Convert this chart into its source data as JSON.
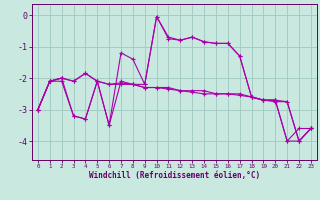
{
  "xlabel": "Windchill (Refroidissement éolien,°C)",
  "bg_color": "#c8e8e0",
  "grid_color": "#a0c8c0",
  "line_color": "#aa00aa",
  "ylim": [
    -4.6,
    0.35
  ],
  "xlim": [
    -0.5,
    23.5
  ],
  "yticks": [
    0,
    -1,
    -2,
    -3,
    -4
  ],
  "xticks": [
    0,
    1,
    2,
    3,
    4,
    5,
    6,
    7,
    8,
    9,
    10,
    11,
    12,
    13,
    14,
    15,
    16,
    17,
    18,
    19,
    20,
    21,
    22,
    23
  ],
  "lines": [
    {
      "x": [
        0,
        1,
        2,
        3,
        4,
        5,
        6,
        7,
        8,
        9,
        10,
        11,
        12,
        13,
        14,
        15,
        16,
        17,
        18,
        19,
        20,
        21,
        22,
        23
      ],
      "y": [
        -3.0,
        -2.1,
        -2.0,
        -3.2,
        -3.3,
        -2.1,
        -3.5,
        -1.2,
        -1.4,
        -2.2,
        -0.05,
        -0.75,
        -0.8,
        -0.7,
        -0.85,
        -0.9,
        -0.9,
        -1.3,
        -2.6,
        -2.7,
        -2.7,
        -2.75,
        -4.0,
        -3.6
      ]
    },
    {
      "x": [
        0,
        1,
        2,
        3,
        4,
        5,
        6,
        7,
        8,
        9,
        10,
        11,
        12,
        13,
        14,
        15,
        16,
        17,
        18,
        19,
        20,
        21,
        22,
        23
      ],
      "y": [
        -3.0,
        -2.1,
        -2.0,
        -2.1,
        -1.85,
        -2.1,
        -2.2,
        -2.2,
        -2.2,
        -2.3,
        -2.3,
        -2.3,
        -2.4,
        -2.4,
        -2.4,
        -2.5,
        -2.5,
        -2.5,
        -2.6,
        -2.7,
        -2.7,
        -4.0,
        -4.0,
        -3.6
      ]
    },
    {
      "x": [
        0,
        1,
        2,
        3,
        4,
        5,
        6,
        7,
        8,
        9,
        10,
        11,
        12,
        13,
        14,
        15,
        16,
        17,
        18,
        19,
        20,
        21,
        22,
        23
      ],
      "y": [
        -3.0,
        -2.1,
        -2.0,
        -2.1,
        -1.85,
        -2.1,
        -2.2,
        -2.15,
        -2.2,
        -2.3,
        -2.3,
        -2.35,
        -2.4,
        -2.45,
        -2.5,
        -2.5,
        -2.5,
        -2.55,
        -2.6,
        -2.7,
        -2.75,
        -2.75,
        -4.0,
        -3.6
      ]
    },
    {
      "x": [
        0,
        1,
        2,
        3,
        4,
        5,
        6,
        7,
        8,
        9,
        10,
        11,
        12,
        13,
        14,
        15,
        16,
        17,
        18,
        19,
        20,
        21,
        22,
        23
      ],
      "y": [
        -3.0,
        -2.1,
        -2.1,
        -3.2,
        -3.3,
        -2.1,
        -3.5,
        -2.1,
        -2.2,
        -2.2,
        -0.05,
        -0.7,
        -0.8,
        -0.7,
        -0.85,
        -0.9,
        -0.9,
        -1.3,
        -2.6,
        -2.7,
        -2.7,
        -4.0,
        -3.6,
        -3.6
      ]
    }
  ]
}
